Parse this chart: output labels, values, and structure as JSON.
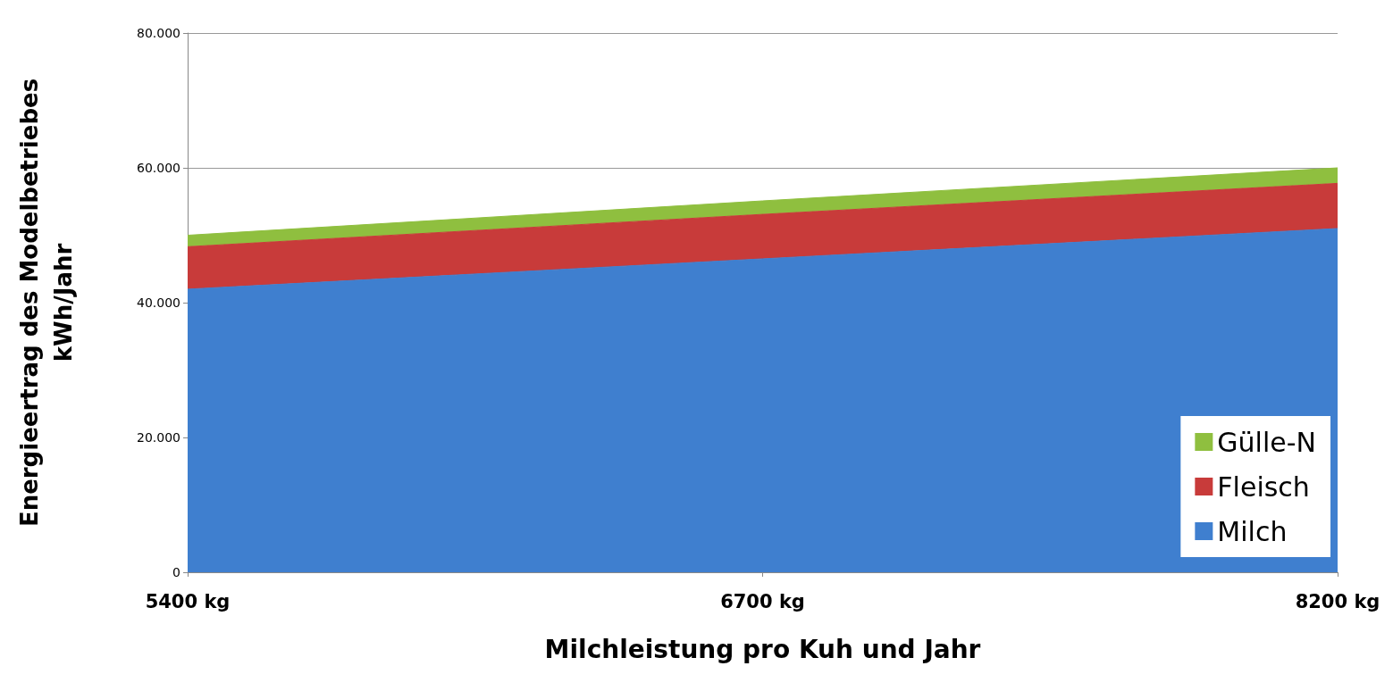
{
  "chart_data": {
    "type": "area",
    "stacked": true,
    "xlabel": "Milchleistung pro Kuh und Jahr",
    "ylabel": "Energieertrag des Modelbetriebes\nkWh/Jahr",
    "categories": [
      "5400 kg",
      "6700 kg",
      "8200 kg"
    ],
    "series": [
      {
        "name": "Milch",
        "color": "#3f7fcf",
        "values": [
          42000,
          46500,
          51000
        ]
      },
      {
        "name": "Fleisch",
        "color": "#c83b3a",
        "values": [
          6300,
          6600,
          6700
        ]
      },
      {
        "name": "Gülle-N",
        "color": "#8fbf3f",
        "values": [
          1700,
          2000,
          2300
        ]
      }
    ],
    "ylim": [
      0,
      80000
    ],
    "yticks": [
      {
        "value": 0,
        "label": "0"
      },
      {
        "value": 20000,
        "label": "20.000"
      },
      {
        "value": 40000,
        "label": "40.000"
      },
      {
        "value": 60000,
        "label": "60.000"
      },
      {
        "value": 80000,
        "label": "80.000"
      }
    ],
    "grid": "y",
    "legend": "bottom right"
  }
}
